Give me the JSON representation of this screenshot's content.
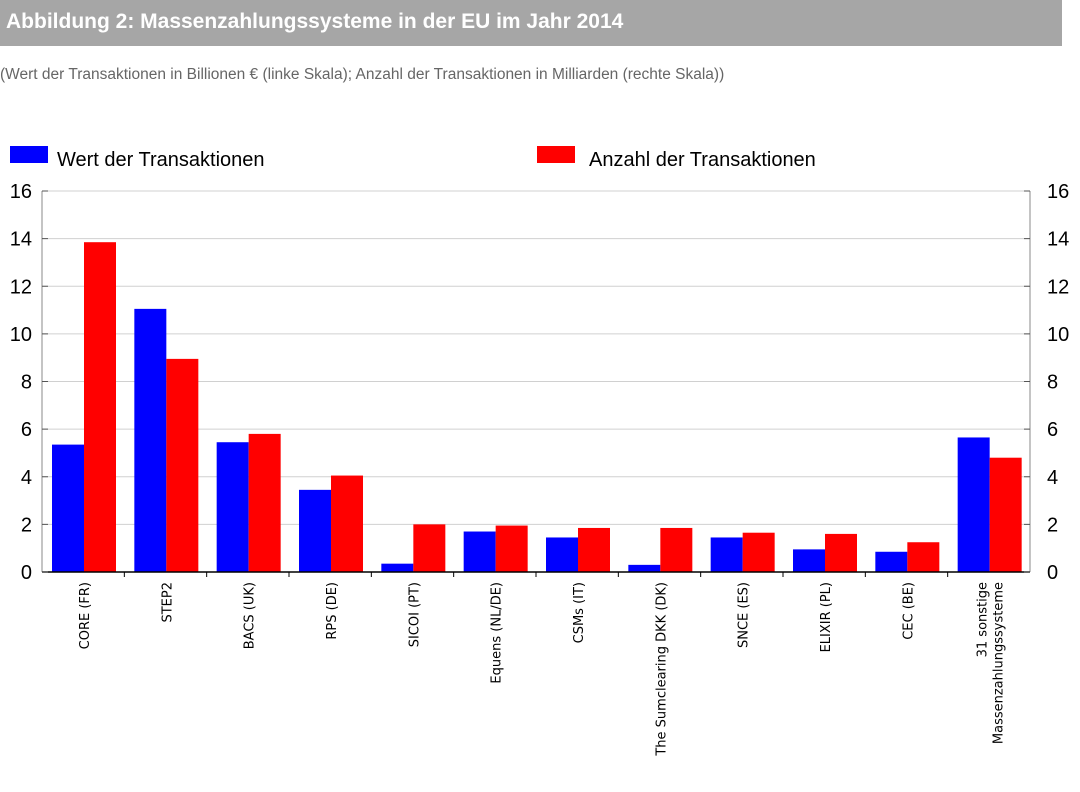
{
  "header": {
    "title": "Abbildung 2:  Massenzahlungssysteme in der EU im Jahr 2014",
    "subtitle": "(Wert der Transaktionen in Billionen € (linke Skala); Anzahl der Transaktionen in Milliarden (rechte Skala))"
  },
  "chart_data": {
    "type": "bar",
    "title": "Abbildung 2:  Massenzahlungssysteme in der EU im Jahr 2014",
    "subtitle": "(Wert der Transaktionen in Billionen € (linke Skala); Anzahl der Transaktionen in Milliarden (rechte Skala))",
    "categories": [
      [
        "CORE (FR)"
      ],
      [
        "STEP2"
      ],
      [
        "BACS (UK)"
      ],
      [
        "RPS (DE)"
      ],
      [
        "SICOI (PT)"
      ],
      [
        "Equens (NL/DE)"
      ],
      [
        "CSMs  (IT)"
      ],
      [
        "The Sumclearing DKK (DK)"
      ],
      [
        "SNCE (ES)"
      ],
      [
        "ELIXIR  (PL)"
      ],
      [
        "CEC (BE)"
      ],
      [
        "31 sonstige",
        "Massenzahlungssysteme"
      ]
    ],
    "series": [
      {
        "name": "Wert der Transaktionen",
        "color": "#0000ff",
        "axis": "left",
        "values": [
          5.35,
          11.05,
          5.45,
          3.45,
          0.35,
          1.7,
          1.45,
          0.3,
          1.45,
          0.95,
          0.85,
          5.65
        ]
      },
      {
        "name": "Anzahl der Transaktionen",
        "color": "#ff0000",
        "axis": "right",
        "values": [
          13.85,
          8.95,
          5.8,
          4.05,
          2.0,
          1.95,
          1.85,
          1.85,
          1.65,
          1.6,
          1.25,
          4.8
        ]
      }
    ],
    "y_left": {
      "min": 0,
      "max": 16,
      "ticks": [
        0,
        2,
        4,
        6,
        8,
        10,
        12,
        14,
        16
      ]
    },
    "y_right": {
      "min": 0,
      "max": 16,
      "ticks": [
        0,
        2,
        4,
        6,
        8,
        10,
        12,
        14,
        16
      ]
    },
    "grid": true,
    "legend_position": "top"
  }
}
